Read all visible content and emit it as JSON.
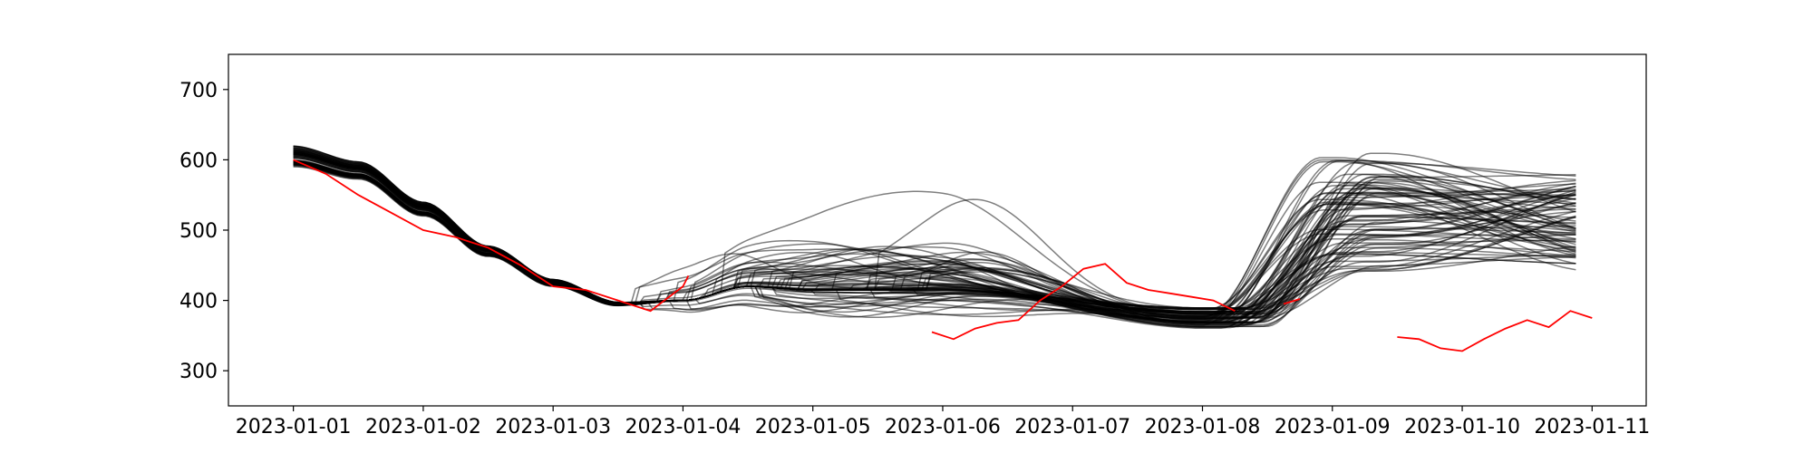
{
  "chart_data": {
    "type": "line",
    "title": "",
    "xlabel": "",
    "ylabel": "",
    "x_type": "date",
    "xlim": [
      "2022-12-31T12:00",
      "2023-01-11T10:00"
    ],
    "ylim": [
      250,
      750
    ],
    "grid": false,
    "legend": "none",
    "x_ticks": [
      "2023-01-01",
      "2023-01-02",
      "2023-01-03",
      "2023-01-04",
      "2023-01-05",
      "2023-01-06",
      "2023-01-07",
      "2023-01-08",
      "2023-01-09",
      "2023-01-10",
      "2023-01-11"
    ],
    "y_ticks": [
      300,
      400,
      500,
      600,
      700
    ],
    "colors": {
      "ensemble": "#000000",
      "observed": "#ff0000",
      "axes": "#000000"
    },
    "ensemble_members": {
      "color": "#000000",
      "count": 80,
      "shared_start": {
        "x": [
          "2023-01-01T00:00",
          "2023-01-01T12:00",
          "2023-01-02T00:00",
          "2023-01-02T12:00",
          "2023-01-03T00:00",
          "2023-01-03T12:00",
          "2023-01-04T00:00",
          "2023-01-04T12:00",
          "2023-01-05T00:00"
        ],
        "y": [
          605,
          585,
          530,
          470,
          425,
          395,
          400,
          420,
          415
        ]
      },
      "divergence_range": [
        "2023-01-03T12:00",
        "2023-01-08T00:00"
      ],
      "end_y_range": [
        440,
        580
      ],
      "peak_y_range": [
        440,
        610
      ]
    },
    "observed_series": {
      "color": "#ff0000",
      "segments": [
        {
          "x": [
            "2023-01-01T00:00",
            "2023-01-01T06:00",
            "2023-01-01T12:00",
            "2023-01-01T18:00",
            "2023-01-02T00:00",
            "2023-01-02T06:00",
            "2023-01-02T12:00",
            "2023-01-02T18:00",
            "2023-01-03T00:00",
            "2023-01-03T06:00",
            "2023-01-03T12:00",
            "2023-01-03T18:00",
            "2023-01-04T00:00",
            "2023-01-04T01:00"
          ],
          "y": [
            600,
            580,
            550,
            525,
            500,
            490,
            475,
            450,
            420,
            415,
            400,
            385,
            420,
            435
          ]
        },
        {
          "x": [
            "2023-01-05T22:00",
            "2023-01-06T02:00",
            "2023-01-06T06:00",
            "2023-01-06T10:00",
            "2023-01-06T14:00",
            "2023-01-06T18:00",
            "2023-01-06T22:00",
            "2023-01-07T02:00",
            "2023-01-07T06:00",
            "2023-01-07T10:00",
            "2023-01-07T14:00",
            "2023-01-07T18:00",
            "2023-01-07T22:00",
            "2023-01-08T02:00",
            "2023-01-08T06:00"
          ],
          "y": [
            355,
            345,
            360,
            368,
            372,
            400,
            420,
            445,
            452,
            425,
            415,
            410,
            405,
            400,
            385
          ]
        },
        {
          "x": [
            "2023-01-08T15:00",
            "2023-01-08T18:00"
          ],
          "y": [
            395,
            402
          ]
        },
        {
          "x": [
            "2023-01-09T12:00",
            "2023-01-09T16:00",
            "2023-01-09T20:00",
            "2023-01-10T00:00",
            "2023-01-10T04:00",
            "2023-01-10T08:00",
            "2023-01-10T12:00",
            "2023-01-10T16:00",
            "2023-01-10T20:00",
            "2023-01-11T00:00"
          ],
          "y": [
            348,
            345,
            332,
            328,
            345,
            360,
            372,
            362,
            385,
            375
          ]
        }
      ]
    }
  }
}
